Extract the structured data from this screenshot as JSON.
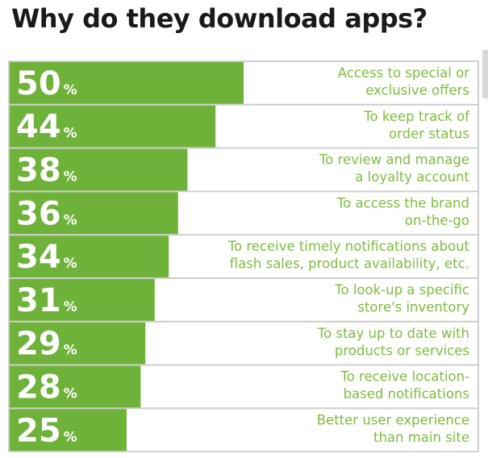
{
  "title": "Why do they download apps?",
  "colors": {
    "bar": "#6fb23a",
    "label": "#7cbd3e",
    "title": "#1a1a1a",
    "row_background": "#ffffff",
    "divider": "#cfcfcf"
  },
  "chart_data": {
    "type": "bar",
    "orientation": "horizontal",
    "title": "Why do they download apps?",
    "unit": "%",
    "xlim": [
      0,
      100
    ],
    "grid": false,
    "categories": [
      [
        "Access to special or",
        "exclusive offers"
      ],
      [
        "To keep track of",
        "order status"
      ],
      [
        "To review and manage",
        "a loyalty account"
      ],
      [
        "To access the brand",
        "on-the-go"
      ],
      [
        "To receive timely notifications about",
        "flash sales, product availability, etc."
      ],
      [
        "To look-up a specific",
        "store's inventory"
      ],
      [
        "To stay up to date with",
        "products or services"
      ],
      [
        "To receive location-",
        "based notifications"
      ],
      [
        "Better user experience",
        "than main site"
      ]
    ],
    "values": [
      50,
      44,
      38,
      36,
      34,
      31,
      29,
      28,
      25
    ]
  }
}
